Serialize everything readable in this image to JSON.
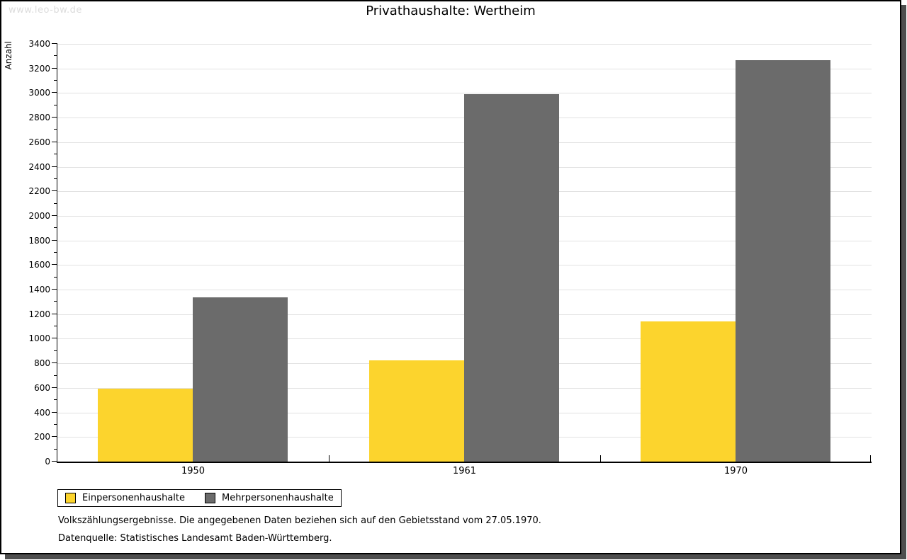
{
  "watermark": "www.leo-bw.de",
  "footnotes": [
    "Volkszählungsergebnisse. Die angegebenen Daten beziehen sich auf den Gebietsstand vom 27.05.1970.",
    "Datenquelle: Statistisches Landesamt Baden-Württemberg."
  ],
  "chart_data": {
    "type": "bar",
    "title": "Privathaushalte: Wertheim",
    "categories": [
      "1950",
      "1961",
      "1970"
    ],
    "series": [
      {
        "name": "Einpersonenhaushalte",
        "color": "#fcd42d",
        "values": [
          595,
          825,
          1140
        ]
      },
      {
        "name": "Mehrpersonenhaushalte",
        "color": "#6b6b6b",
        "values": [
          1335,
          2990,
          3270
        ]
      }
    ],
    "xlabel": "",
    "ylabel": "Anzahl",
    "ylim": [
      0,
      3400
    ],
    "ytick_step": 200,
    "minor_tick_step": 100,
    "grid": true,
    "legend_position": "bottom-left",
    "axis_color": "#000000",
    "gridline_color": "#e2e2e2"
  }
}
